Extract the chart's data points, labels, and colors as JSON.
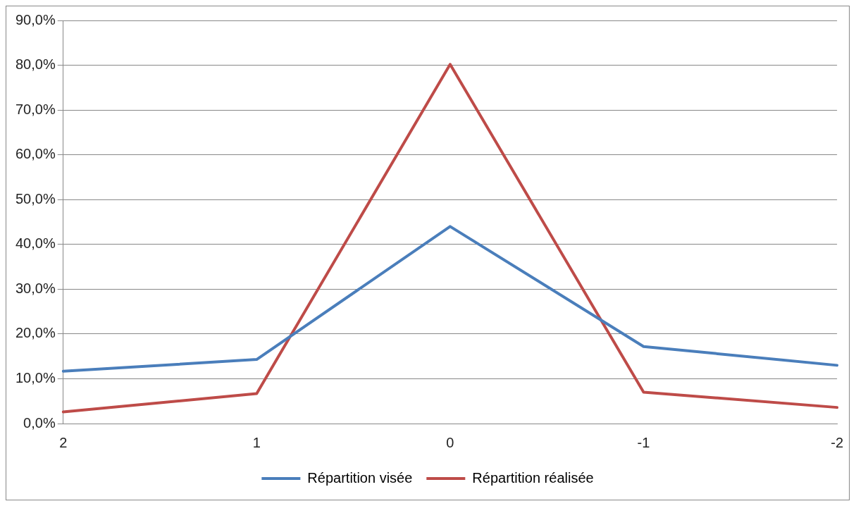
{
  "chart_data": {
    "type": "line",
    "categories": [
      "2",
      "1",
      "0",
      "-1",
      "-2"
    ],
    "series": [
      {
        "name": "Répartition visée",
        "color": "#4a7ebb",
        "values": [
          11.7,
          14.3,
          44.0,
          17.2,
          13.0
        ]
      },
      {
        "name": "Répartition réalisée",
        "color": "#be4b48",
        "values": [
          2.6,
          6.7,
          80.2,
          7.0,
          3.6
        ]
      }
    ],
    "ylim": [
      0,
      90
    ],
    "yticks": [
      {
        "value": 0,
        "label": "0,0%"
      },
      {
        "value": 10,
        "label": "10,0%"
      },
      {
        "value": 20,
        "label": "20,0%"
      },
      {
        "value": 30,
        "label": "30,0%"
      },
      {
        "value": 40,
        "label": "40,0%"
      },
      {
        "value": 50,
        "label": "50,0%"
      },
      {
        "value": 60,
        "label": "60,0%"
      },
      {
        "value": 70,
        "label": "70,0%"
      },
      {
        "value": 80,
        "label": "80,0%"
      },
      {
        "value": 90,
        "label": "90,0%"
      }
    ],
    "grid": "y",
    "legend": "bottom",
    "marker": "none",
    "line_style": "solid"
  }
}
